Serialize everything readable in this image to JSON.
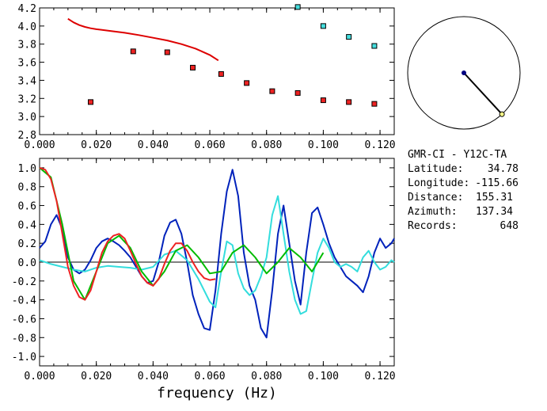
{
  "chart_data": [
    {
      "type": "scatter",
      "panel": "top",
      "xlim": [
        0.0,
        0.125
      ],
      "ylim": [
        2.8,
        4.2
      ],
      "x_ticks": [
        "0.000",
        "0.020",
        "0.040",
        "0.060",
        "0.080",
        "0.100",
        "0.120"
      ],
      "x_tick_values": [
        0.0,
        0.02,
        0.04,
        0.06,
        0.08,
        0.1,
        0.12
      ],
      "y_ticks": [
        "2.8",
        "3.0",
        "3.2",
        "3.4",
        "3.6",
        "3.8",
        "4.0",
        "4.2"
      ],
      "y_tick_values": [
        2.8,
        3.0,
        3.2,
        3.4,
        3.6,
        3.8,
        4.0,
        4.2
      ],
      "series": [
        {
          "kind": "line",
          "color": "#dd0000",
          "x": [
            0.01,
            0.012,
            0.014,
            0.016,
            0.018,
            0.02,
            0.025,
            0.03,
            0.035,
            0.04,
            0.045,
            0.05,
            0.055,
            0.06,
            0.063
          ],
          "y": [
            4.08,
            4.04,
            4.01,
            3.99,
            3.975,
            3.965,
            3.945,
            3.925,
            3.9,
            3.87,
            3.84,
            3.8,
            3.75,
            3.68,
            3.62
          ]
        },
        {
          "kind": "markers",
          "color": "#ee2222",
          "x": [
            0.018,
            0.033,
            0.045,
            0.054,
            0.064,
            0.073,
            0.082,
            0.091,
            0.1,
            0.109,
            0.118
          ],
          "y": [
            3.16,
            3.72,
            3.71,
            3.54,
            3.47,
            3.37,
            3.28,
            3.26,
            3.18,
            3.16,
            3.14
          ]
        },
        {
          "kind": "markers",
          "color": "#44dddd",
          "x": [
            0.091,
            0.1,
            0.109,
            0.118
          ],
          "y": [
            4.21,
            4.0,
            3.88,
            3.78
          ]
        }
      ]
    },
    {
      "type": "line",
      "panel": "bottom",
      "xlabel": "frequency (Hz)",
      "xlim": [
        0.0,
        0.125
      ],
      "ylim": [
        -1.1,
        1.1
      ],
      "x_ticks": [
        "0.000",
        "0.020",
        "0.040",
        "0.060",
        "0.080",
        "0.100",
        "0.120"
      ],
      "x_tick_values": [
        0.0,
        0.02,
        0.04,
        0.06,
        0.08,
        0.1,
        0.12
      ],
      "y_ticks": [
        "1.0",
        "0.8",
        "0.6",
        "0.4",
        "0.2",
        "0.0",
        "-0.2",
        "-0.4",
        "-0.6",
        "-0.8",
        "-1.0"
      ],
      "y_tick_values": [
        1.0,
        0.8,
        0.6,
        0.4,
        0.2,
        0.0,
        -0.2,
        -0.4,
        -0.6,
        -0.8,
        -1.0
      ],
      "series": [
        {
          "color": "#0022bb",
          "x": [
            0.0,
            0.002,
            0.004,
            0.006,
            0.008,
            0.01,
            0.012,
            0.014,
            0.016,
            0.018,
            0.02,
            0.022,
            0.024,
            0.026,
            0.028,
            0.03,
            0.032,
            0.034,
            0.036,
            0.038,
            0.04,
            0.042,
            0.044,
            0.046,
            0.048,
            0.05,
            0.052,
            0.054,
            0.056,
            0.058,
            0.06,
            0.062,
            0.064,
            0.066,
            0.068,
            0.07,
            0.072,
            0.074,
            0.076,
            0.078,
            0.08,
            0.082,
            0.084,
            0.086,
            0.088,
            0.09,
            0.092,
            0.094,
            0.096,
            0.098,
            0.1,
            0.102,
            0.104,
            0.106,
            0.108,
            0.11,
            0.112,
            0.114,
            0.116,
            0.118,
            0.12,
            0.122,
            0.124,
            0.125
          ],
          "y": [
            0.15,
            0.22,
            0.4,
            0.5,
            0.35,
            0.05,
            -0.08,
            -0.12,
            -0.08,
            0.02,
            0.15,
            0.22,
            0.25,
            0.22,
            0.18,
            0.12,
            0.05,
            -0.05,
            -0.15,
            -0.22,
            -0.2,
            0.0,
            0.28,
            0.42,
            0.45,
            0.3,
            0.0,
            -0.35,
            -0.55,
            -0.7,
            -0.72,
            -0.3,
            0.3,
            0.75,
            0.98,
            0.7,
            0.1,
            -0.25,
            -0.4,
            -0.7,
            -0.8,
            -0.3,
            0.3,
            0.6,
            0.2,
            -0.2,
            -0.45,
            0.1,
            0.52,
            0.58,
            0.4,
            0.2,
            0.05,
            -0.05,
            -0.15,
            -0.2,
            -0.25,
            -0.32,
            -0.15,
            0.1,
            0.25,
            0.15,
            0.2,
            0.25
          ]
        },
        {
          "color": "#33dddd",
          "x": [
            0.0,
            0.004,
            0.008,
            0.012,
            0.016,
            0.02,
            0.024,
            0.028,
            0.032,
            0.036,
            0.04,
            0.044,
            0.048,
            0.052,
            0.056,
            0.06,
            0.062,
            0.064,
            0.066,
            0.068,
            0.07,
            0.072,
            0.074,
            0.076,
            0.078,
            0.08,
            0.082,
            0.084,
            0.086,
            0.088,
            0.09,
            0.092,
            0.094,
            0.096,
            0.098,
            0.1,
            0.102,
            0.104,
            0.106,
            0.108,
            0.11,
            0.112,
            0.114,
            0.116,
            0.118,
            0.12,
            0.122,
            0.124,
            0.125
          ],
          "y": [
            0.02,
            -0.02,
            -0.05,
            -0.08,
            -0.1,
            -0.06,
            -0.04,
            -0.05,
            -0.06,
            -0.08,
            -0.05,
            0.08,
            0.12,
            0.02,
            -0.18,
            -0.42,
            -0.48,
            -0.1,
            0.22,
            0.18,
            -0.12,
            -0.28,
            -0.35,
            -0.3,
            -0.15,
            0.05,
            0.5,
            0.7,
            0.3,
            -0.1,
            -0.4,
            -0.55,
            -0.52,
            -0.2,
            0.1,
            0.25,
            0.15,
            0.0,
            -0.05,
            -0.02,
            -0.05,
            -0.1,
            0.05,
            0.12,
            0.0,
            -0.08,
            -0.05,
            0.02,
            0.0
          ]
        },
        {
          "color": "#00bb00",
          "x": [
            0.0,
            0.004,
            0.008,
            0.012,
            0.016,
            0.02,
            0.024,
            0.028,
            0.032,
            0.036,
            0.04,
            0.044,
            0.048,
            0.052,
            0.056,
            0.06,
            0.064,
            0.068,
            0.072,
            0.076,
            0.08,
            0.084,
            0.088,
            0.092,
            0.096,
            0.1
          ],
          "y": [
            1.0,
            0.9,
            0.4,
            -0.2,
            -0.4,
            -0.1,
            0.2,
            0.28,
            0.15,
            -0.1,
            -0.25,
            -0.1,
            0.12,
            0.18,
            0.05,
            -0.12,
            -0.1,
            0.1,
            0.18,
            0.05,
            -0.12,
            0.0,
            0.15,
            0.05,
            -0.1,
            0.1
          ]
        },
        {
          "color": "#ee2222",
          "x": [
            0.0,
            0.002,
            0.004,
            0.006,
            0.008,
            0.01,
            0.012,
            0.014,
            0.016,
            0.018,
            0.02,
            0.022,
            0.024,
            0.026,
            0.028,
            0.03,
            0.032,
            0.034,
            0.036,
            0.038,
            0.04,
            0.042,
            0.044,
            0.046,
            0.048,
            0.05,
            0.052,
            0.054,
            0.056,
            0.058,
            0.06,
            0.062
          ],
          "y": [
            1.0,
            0.98,
            0.88,
            0.65,
            0.3,
            -0.05,
            -0.25,
            -0.37,
            -0.4,
            -0.3,
            -0.1,
            0.1,
            0.22,
            0.28,
            0.3,
            0.25,
            0.12,
            -0.02,
            -0.15,
            -0.22,
            -0.25,
            -0.18,
            -0.02,
            0.12,
            0.2,
            0.2,
            0.12,
            0.0,
            -0.1,
            -0.17,
            -0.19,
            -0.18
          ]
        }
      ]
    }
  ],
  "compass": {
    "azimuth_deg": 137.34,
    "line_color": "#000000",
    "center_color": "#000080",
    "end_color": "#ffff88"
  },
  "station": {
    "title": "GMR-CI  -  Y12C-TA",
    "rows": [
      {
        "label": "Latitude:",
        "value": "34.78"
      },
      {
        "label": "Longitude:",
        "value": "-115.66"
      },
      {
        "label": "Distance:",
        "value": "155.31"
      },
      {
        "label": "Azimuth:",
        "value": "137.34"
      },
      {
        "label": "Records:",
        "value": "648"
      }
    ]
  }
}
